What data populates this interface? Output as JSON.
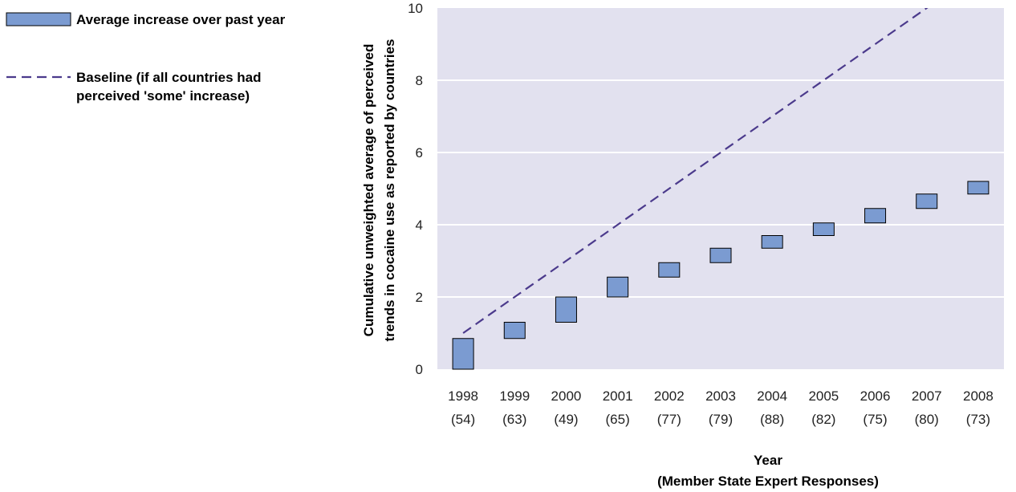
{
  "chart_data": {
    "type": "floating-bar",
    "categories": [
      "1998",
      "1999",
      "2000",
      "2001",
      "2002",
      "2003",
      "2004",
      "2005",
      "2006",
      "2007",
      "2008"
    ],
    "category_counts": [
      "(54)",
      "(63)",
      "(49)",
      "(65)",
      "(77)",
      "(79)",
      "(88)",
      "(82)",
      "(75)",
      "(80)",
      "(73)"
    ],
    "series": [
      {
        "name": "Average increase over past year",
        "type": "floating-bar",
        "low": [
          0.0,
          0.85,
          1.3,
          2.0,
          2.55,
          2.95,
          3.35,
          3.7,
          4.05,
          4.45,
          4.85
        ],
        "high": [
          0.85,
          1.3,
          2.0,
          2.55,
          2.95,
          3.35,
          3.7,
          4.05,
          4.45,
          4.85,
          5.2
        ],
        "color": "#7b9bd1"
      },
      {
        "name": "Baseline (if all countries had perceived 'some' increase)",
        "type": "line",
        "style": "dashed",
        "values": [
          1,
          2,
          3,
          4,
          5,
          6,
          7,
          8,
          9,
          10,
          11
        ],
        "color": "#4b3a8c"
      }
    ],
    "legend": {
      "bar_label": "Average increase over past year",
      "line_label_1": "Baseline (if all countries had",
      "line_label_2": "perceived 'some' increase)",
      "position": "top-left"
    },
    "ylabel_1": "Cumulative unweighted average of perceived",
    "ylabel_2": "trends in cocaine use as reported by countries",
    "xlabel_1": "Year",
    "xlabel_2": "(Member State Expert Responses)",
    "ylim": [
      0,
      10
    ],
    "yticks": [
      "0",
      "2",
      "4",
      "6",
      "8",
      "10"
    ],
    "grid": "horizontal",
    "plot_background": "#e2e1ef"
  }
}
